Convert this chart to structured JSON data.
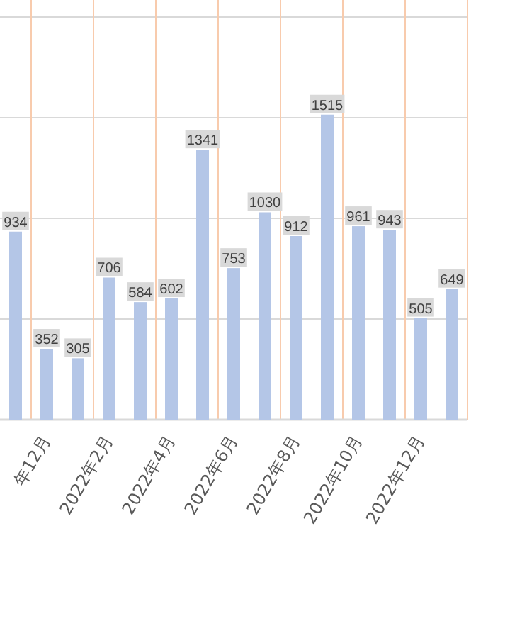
{
  "chart_data": {
    "type": "bar",
    "categories": [
      null,
      "年12月",
      null,
      "2022年2月",
      null,
      "2022年4月",
      null,
      "2022年6月",
      null,
      "2022年8月",
      null,
      "2022年10月",
      null,
      "2022年12月",
      null
    ],
    "series": [
      {
        "color": "#b4c6e7",
        "values": [
          934,
          352,
          305,
          706,
          584,
          602,
          1341,
          753,
          1030,
          912,
          1515,
          961,
          943,
          505,
          649
        ]
      }
    ],
    "ylim": [
      0,
      2000
    ],
    "yticks": [
      {
        "value": 0,
        "label": null
      },
      {
        "value": 500,
        "label": null
      },
      {
        "value": 1000,
        "label": null
      },
      {
        "value": 1500,
        "label": null
      },
      {
        "value": 2000,
        "label": null
      }
    ],
    "tick_labels": "x",
    "grid": true,
    "data_labels": true
  }
}
